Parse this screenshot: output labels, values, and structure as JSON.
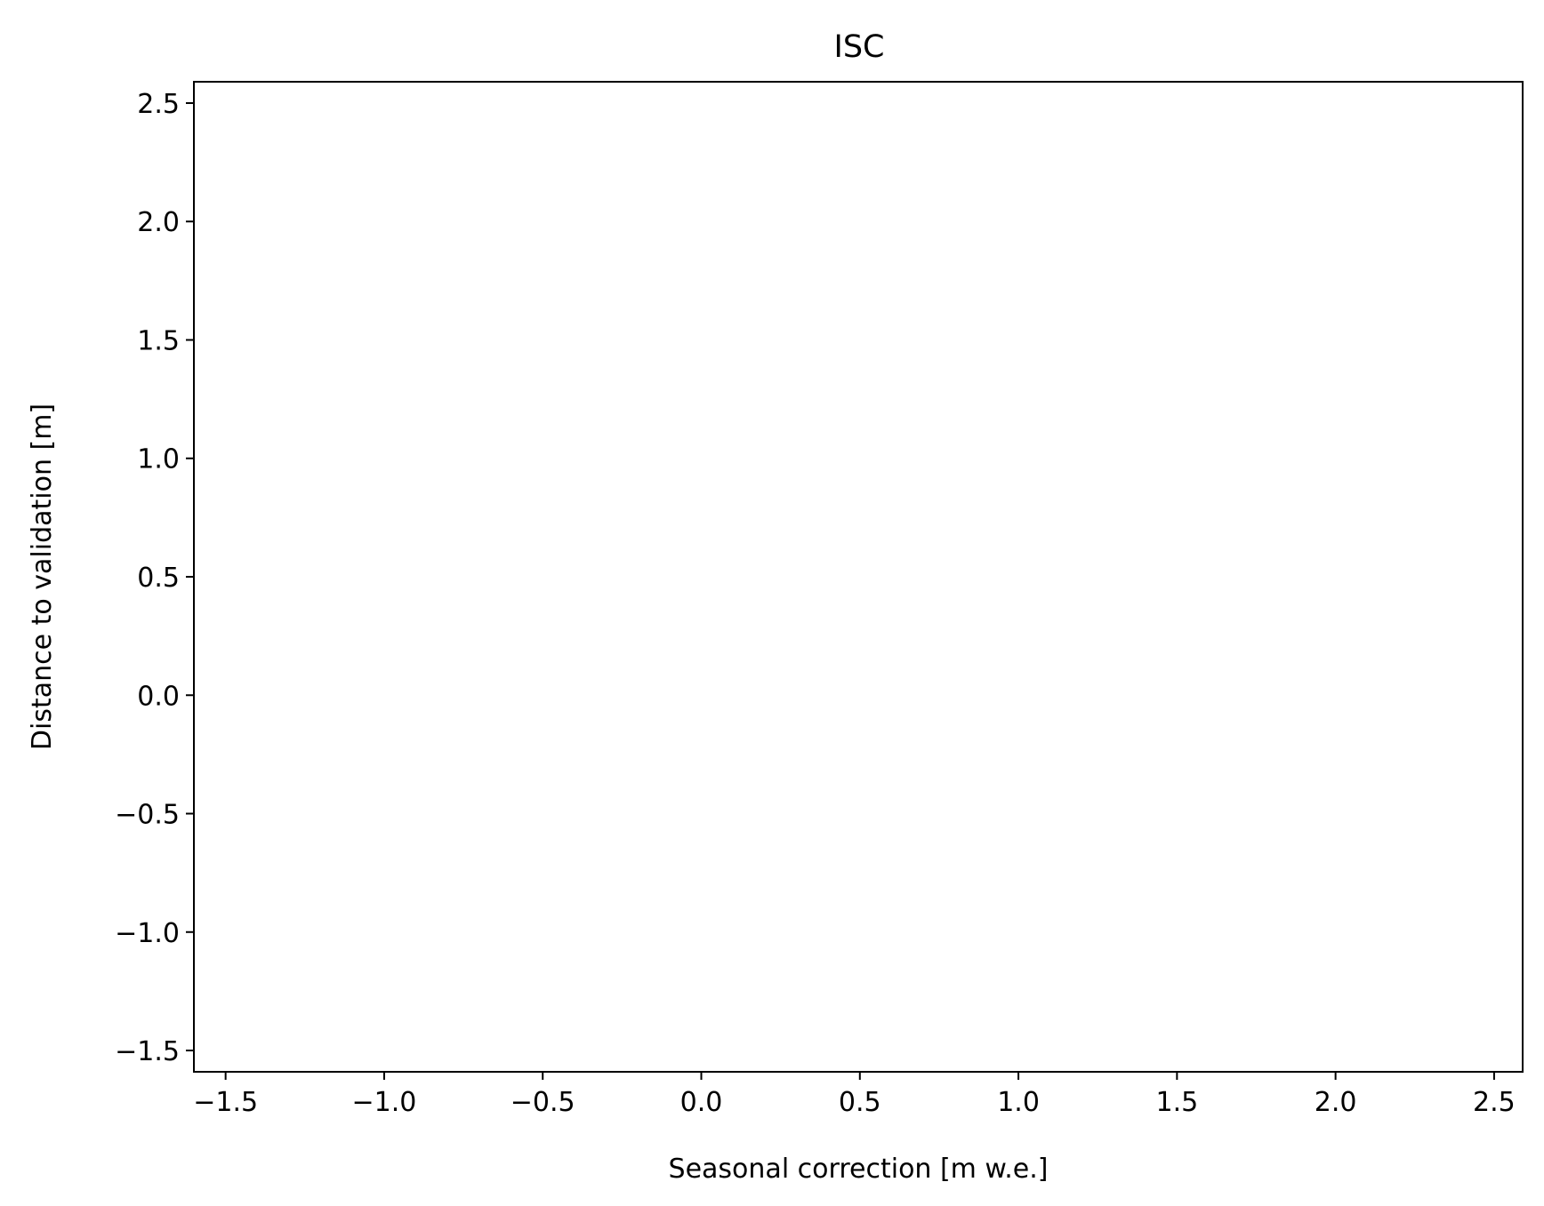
{
  "chart_data": {
    "type": "scatter",
    "title": "ISC",
    "xlabel": "Seasonal correction [m w.e.]",
    "ylabel": "Distance to validation [m]",
    "xlim": [
      -1.6,
      2.59
    ],
    "ylim": [
      -1.59,
      2.59
    ],
    "xticks": [
      -1.5,
      -1.0,
      -0.5,
      0.0,
      0.5,
      1.0,
      1.5,
      2.0,
      2.5
    ],
    "xtick_labels": [
      "−1.5",
      "−1.0",
      "−0.5",
      "0.0",
      "0.5",
      "1.0",
      "1.5",
      "2.0",
      "2.5"
    ],
    "yticks": [
      2.5,
      2.0,
      1.5,
      1.0,
      0.5,
      0.0,
      -0.5,
      -1.0,
      -1.5
    ],
    "ytick_labels": [
      "2.5",
      "2.0",
      "1.5",
      "1.0",
      "0.5",
      "0.0",
      "−0.5",
      "−1.0",
      "−1.5"
    ],
    "series": [],
    "grid": false,
    "legend": false
  }
}
